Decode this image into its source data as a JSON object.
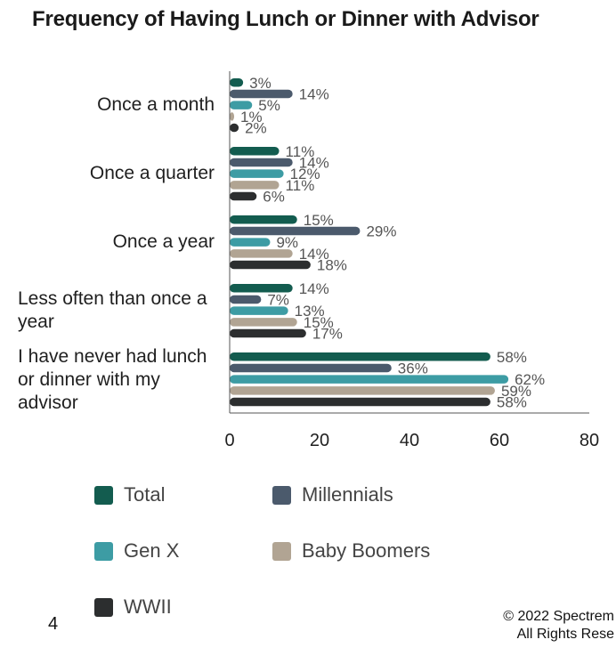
{
  "title": "Frequency of Having Lunch or Dinner with Advisor",
  "page_number": "4",
  "footer": {
    "line1": "© 2022 Spectrem",
    "line2": "All Rights Rese"
  },
  "colors": {
    "Total": "#135c4f",
    "Millennials": "#4b5a6c",
    "Gen X": "#3d9ca4",
    "Baby Boomers": "#b1a493",
    "WWII": "#2c2e2f"
  },
  "chart_data": {
    "type": "bar",
    "orientation": "horizontal",
    "title": "Frequency of Having Lunch or Dinner with Advisor",
    "categories": [
      "Once a month",
      "Once a quarter",
      "Once a year",
      "Less often than once a year",
      "I have never had lunch or dinner with my advisor"
    ],
    "series": [
      {
        "name": "Total",
        "values": [
          3,
          11,
          15,
          14,
          58
        ]
      },
      {
        "name": "Millennials",
        "values": [
          14,
          14,
          29,
          7,
          36
        ]
      },
      {
        "name": "Gen X",
        "values": [
          5,
          12,
          9,
          13,
          62
        ]
      },
      {
        "name": "Baby Boomers",
        "values": [
          1,
          11,
          14,
          15,
          59
        ]
      },
      {
        "name": "WWII",
        "values": [
          2,
          6,
          18,
          17,
          58
        ]
      }
    ],
    "value_suffix": "%",
    "xlim": [
      0,
      80
    ],
    "xticks": [
      0,
      20,
      40,
      60,
      80
    ],
    "grid": false,
    "legend_position": "bottom"
  }
}
